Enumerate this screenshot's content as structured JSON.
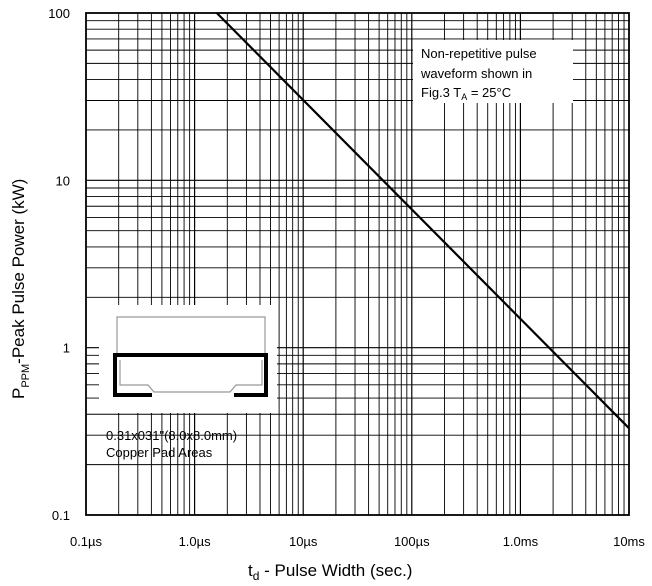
{
  "chart_data": {
    "type": "line",
    "title": "",
    "xlabel_prefix": "t",
    "xlabel_sub": "d",
    "xlabel_rest": " - Pulse Width (sec.)",
    "ylabel_prefix": "P",
    "ylabel_sub": "PPM",
    "ylabel_rest": "-Peak Pulse Power (kW)",
    "x_scale": "log",
    "y_scale": "log",
    "xlim": [
      1e-07,
      0.01
    ],
    "ylim": [
      0.1,
      100
    ],
    "grid": true,
    "x_tick_values": [
      1e-07,
      1e-06,
      1e-05,
      0.0001,
      0.001,
      0.01
    ],
    "x_tick_labels": [
      "0.1µs",
      "1.0µs",
      "10µs",
      "100µs",
      "1.0ms",
      "10ms"
    ],
    "y_tick_values": [
      0.1,
      1,
      10,
      100
    ],
    "y_tick_labels": [
      "0.1",
      "1",
      "10",
      "100"
    ],
    "series": [
      {
        "x": [
          1.6e-06,
          0.01
        ],
        "y": [
          100,
          0.33
        ]
      }
    ],
    "annotation_lines": [
      "Non-repetitive pulse",
      "waveform shown in",
      "Fig.3 T",
      "A",
      " = 25°C"
    ],
    "inset_lines": [
      "0.31x031\"(8.0x8.0mm)",
      "Copper Pad Areas"
    ]
  },
  "colors": {
    "line": "#000000",
    "grid": "#000000",
    "inset_outline": "#999999"
  }
}
